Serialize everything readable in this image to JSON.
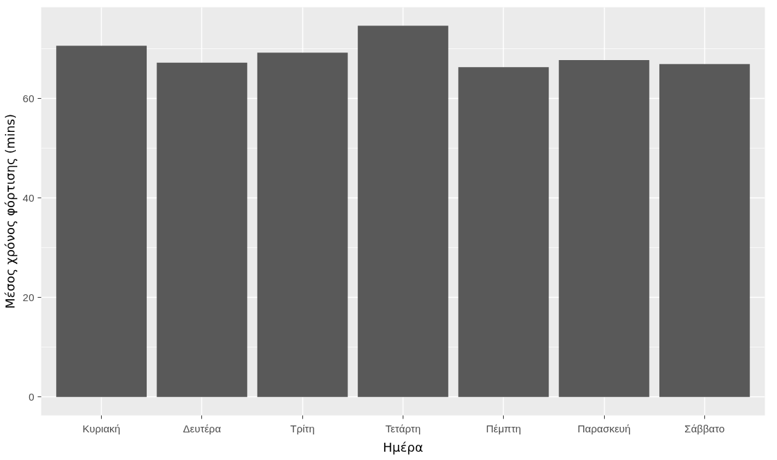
{
  "chart_data": {
    "type": "bar",
    "xlabel": "Ημέρα",
    "ylabel": "Μέσος χρόνος φόρτισης (mins)",
    "categories": [
      "Κυριακή",
      "Δευτέρα",
      "Τρίτη",
      "Τετάρτη",
      "Πέμπτη",
      "Παρασκευή",
      "Σάββατο"
    ],
    "values": [
      70.6,
      67.2,
      69.2,
      74.6,
      66.3,
      67.7,
      66.9
    ],
    "color": "#595959",
    "ylim": [
      -3.73,
      78.33
    ],
    "yticks": [
      0,
      20,
      40,
      60
    ],
    "grid": true
  }
}
